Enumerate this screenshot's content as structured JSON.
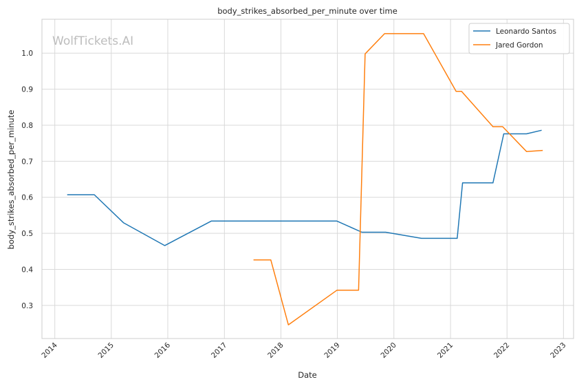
{
  "chart_data": {
    "type": "line",
    "title": "body_strikes_absorbed_per_minute over time",
    "xlabel": "Date",
    "ylabel": "body_strikes_absorbed_per_minute",
    "watermark": "WolfTickets.AI",
    "x_ticks": [
      "2014",
      "2015",
      "2016",
      "2017",
      "2018",
      "2019",
      "2020",
      "2021",
      "2022",
      "2023"
    ],
    "y_ticks": [
      "0.3",
      "0.4",
      "0.5",
      "0.6",
      "0.7",
      "0.8",
      "0.9",
      "1.0"
    ],
    "xlim": [
      "2013-10-10",
      "2023-03-07"
    ],
    "ylim": [
      0.208,
      1.094
    ],
    "grid": true,
    "legend_position": "top-right",
    "series": [
      {
        "name": "Leonardo Santos",
        "color": "#1f77b4",
        "points": [
          [
            "2014-03-22",
            0.607
          ],
          [
            "2014-09-13",
            0.607
          ],
          [
            "2015-03-22",
            0.529
          ],
          [
            "2015-12-12",
            0.466
          ],
          [
            "2016-10-08",
            0.534
          ],
          [
            "2018-12-29",
            0.534
          ],
          [
            "2019-06-08",
            0.503
          ],
          [
            "2019-11-09",
            0.503
          ],
          [
            "2020-06-27",
            0.486
          ],
          [
            "2021-02-13",
            0.486
          ],
          [
            "2021-03-20",
            0.64
          ],
          [
            "2021-10-02",
            0.64
          ],
          [
            "2021-12-11",
            0.776
          ],
          [
            "2022-05-07",
            0.776
          ],
          [
            "2022-08-13",
            0.786
          ]
        ]
      },
      {
        "name": "Jared Gordon",
        "color": "#ff7f0e",
        "points": [
          [
            "2017-07-08",
            0.426
          ],
          [
            "2017-10-28",
            0.426
          ],
          [
            "2018-02-18",
            0.246
          ],
          [
            "2018-12-29",
            0.342
          ],
          [
            "2019-05-18",
            0.342
          ],
          [
            "2019-06-29",
            0.998
          ],
          [
            "2019-11-02",
            1.054
          ],
          [
            "2020-07-11",
            1.054
          ],
          [
            "2021-02-06",
            0.894
          ],
          [
            "2021-03-13",
            0.894
          ],
          [
            "2021-10-02",
            0.796
          ],
          [
            "2021-12-04",
            0.796
          ],
          [
            "2022-05-07",
            0.727
          ],
          [
            "2022-08-20",
            0.73
          ]
        ]
      }
    ]
  }
}
